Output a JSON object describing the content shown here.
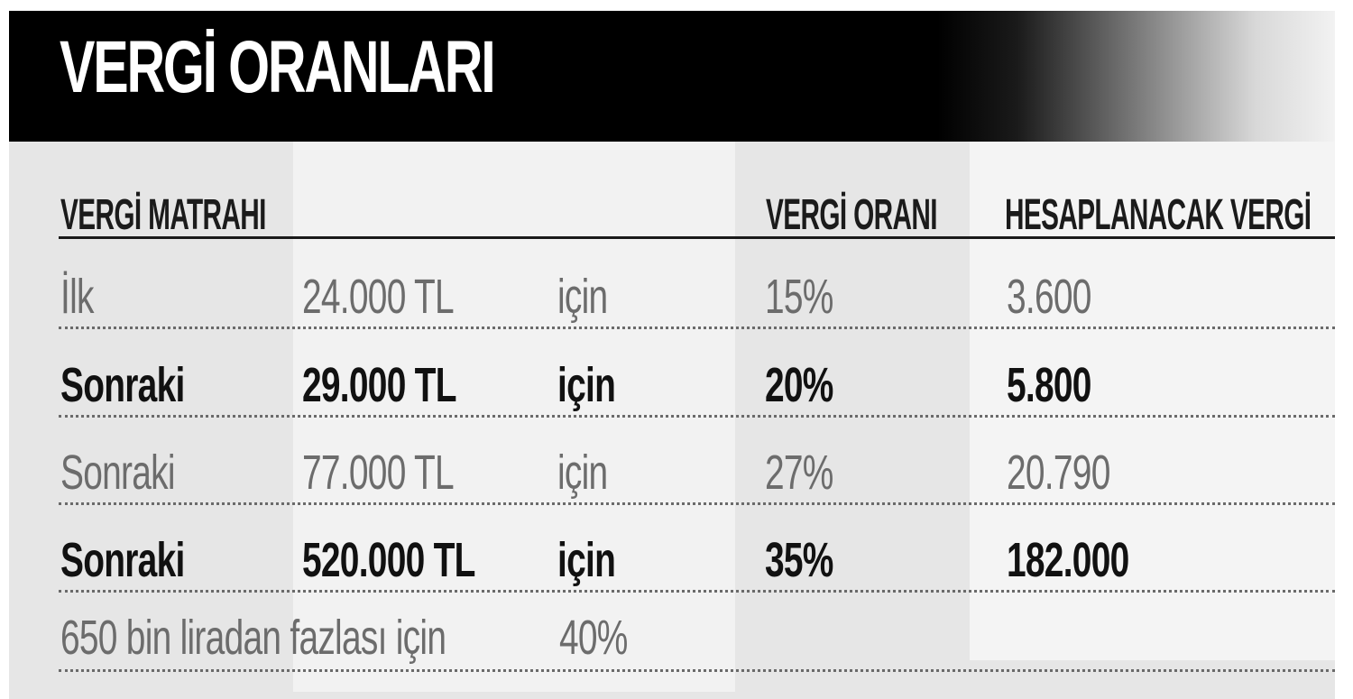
{
  "title": "VERGİ ORANLARI",
  "headers": {
    "base": "VERGİ MATRAHI",
    "rate": "VERGİ ORANI",
    "tax": "HESAPLANACAK VERGİ"
  },
  "rows": [
    {
      "label": "İlk",
      "amount": "24.000 TL",
      "for": "için",
      "rate": "15%",
      "tax": "3.600",
      "bold": false
    },
    {
      "label": "Sonraki",
      "amount": "29.000 TL",
      "for": "için",
      "rate": "20%",
      "tax": "5.800",
      "bold": true
    },
    {
      "label": "Sonraki",
      "amount": "77.000 TL",
      "for": "için",
      "rate": "27%",
      "tax": "20.790",
      "bold": false
    },
    {
      "label": "Sonraki",
      "amount": "520.000 TL",
      "for": "için",
      "rate": "35%",
      "tax": "182.000",
      "bold": true
    }
  ],
  "footer": {
    "label": "650 bin liradan fazlası için",
    "rate": "40%"
  },
  "colors": {
    "title_bar": "#000000",
    "title_text": "#ffffff",
    "background": "#e6e6e6",
    "highlight_column": "#f2f2f2"
  }
}
